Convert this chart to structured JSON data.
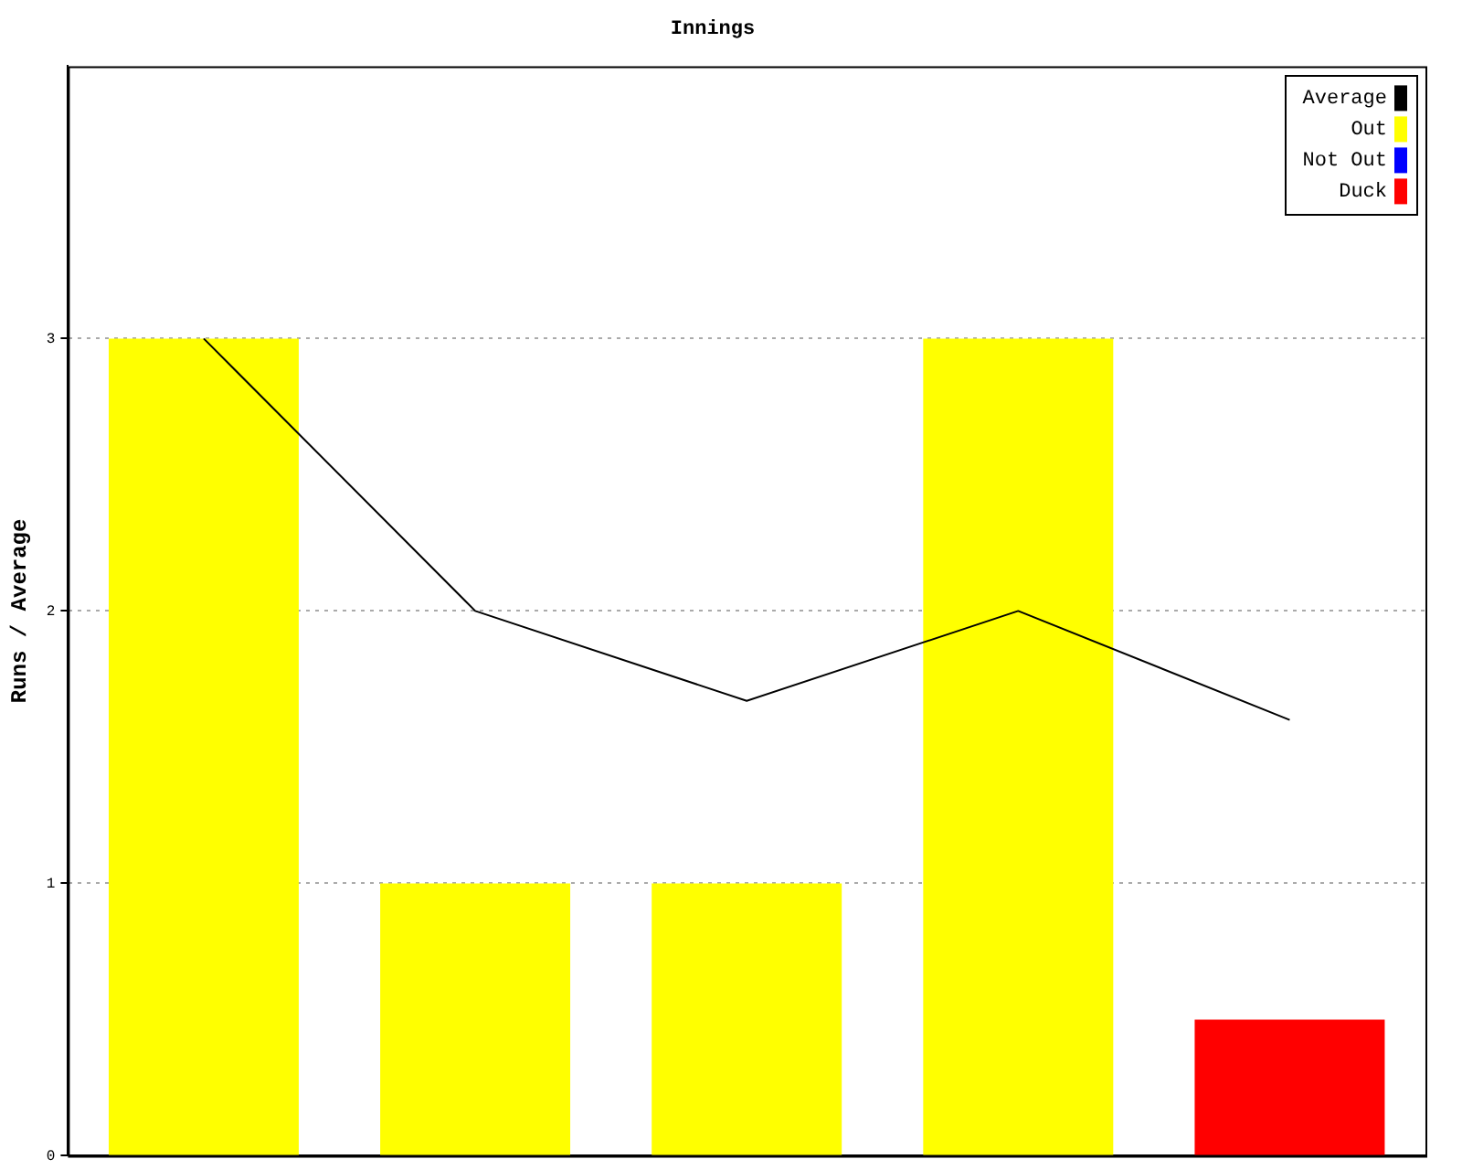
{
  "chart_data": {
    "type": "bar",
    "title": "Innings",
    "ylabel": "Runs / Average",
    "categories": [
      null,
      null,
      null,
      null,
      null
    ],
    "stacked": true,
    "series": [
      {
        "name": "Average",
        "type": "line",
        "color": "#000000",
        "values": [
          3,
          2,
          1.67,
          2,
          1.6
        ]
      },
      {
        "name": "Out",
        "color": "#ffff00",
        "values": [
          3,
          1,
          1,
          3,
          null
        ]
      },
      {
        "name": "Not Out",
        "color": "#0000ff",
        "values": [
          null,
          null,
          null,
          null,
          null
        ]
      },
      {
        "name": "Duck",
        "color": "#ff0000",
        "values": [
          null,
          null,
          null,
          null,
          0.5
        ]
      }
    ],
    "ylim": [
      0,
      4
    ],
    "yticks": [
      0,
      1,
      2,
      3
    ],
    "grid": "y",
    "legend": "top right",
    "marker": "none",
    "line_style": "solid"
  }
}
